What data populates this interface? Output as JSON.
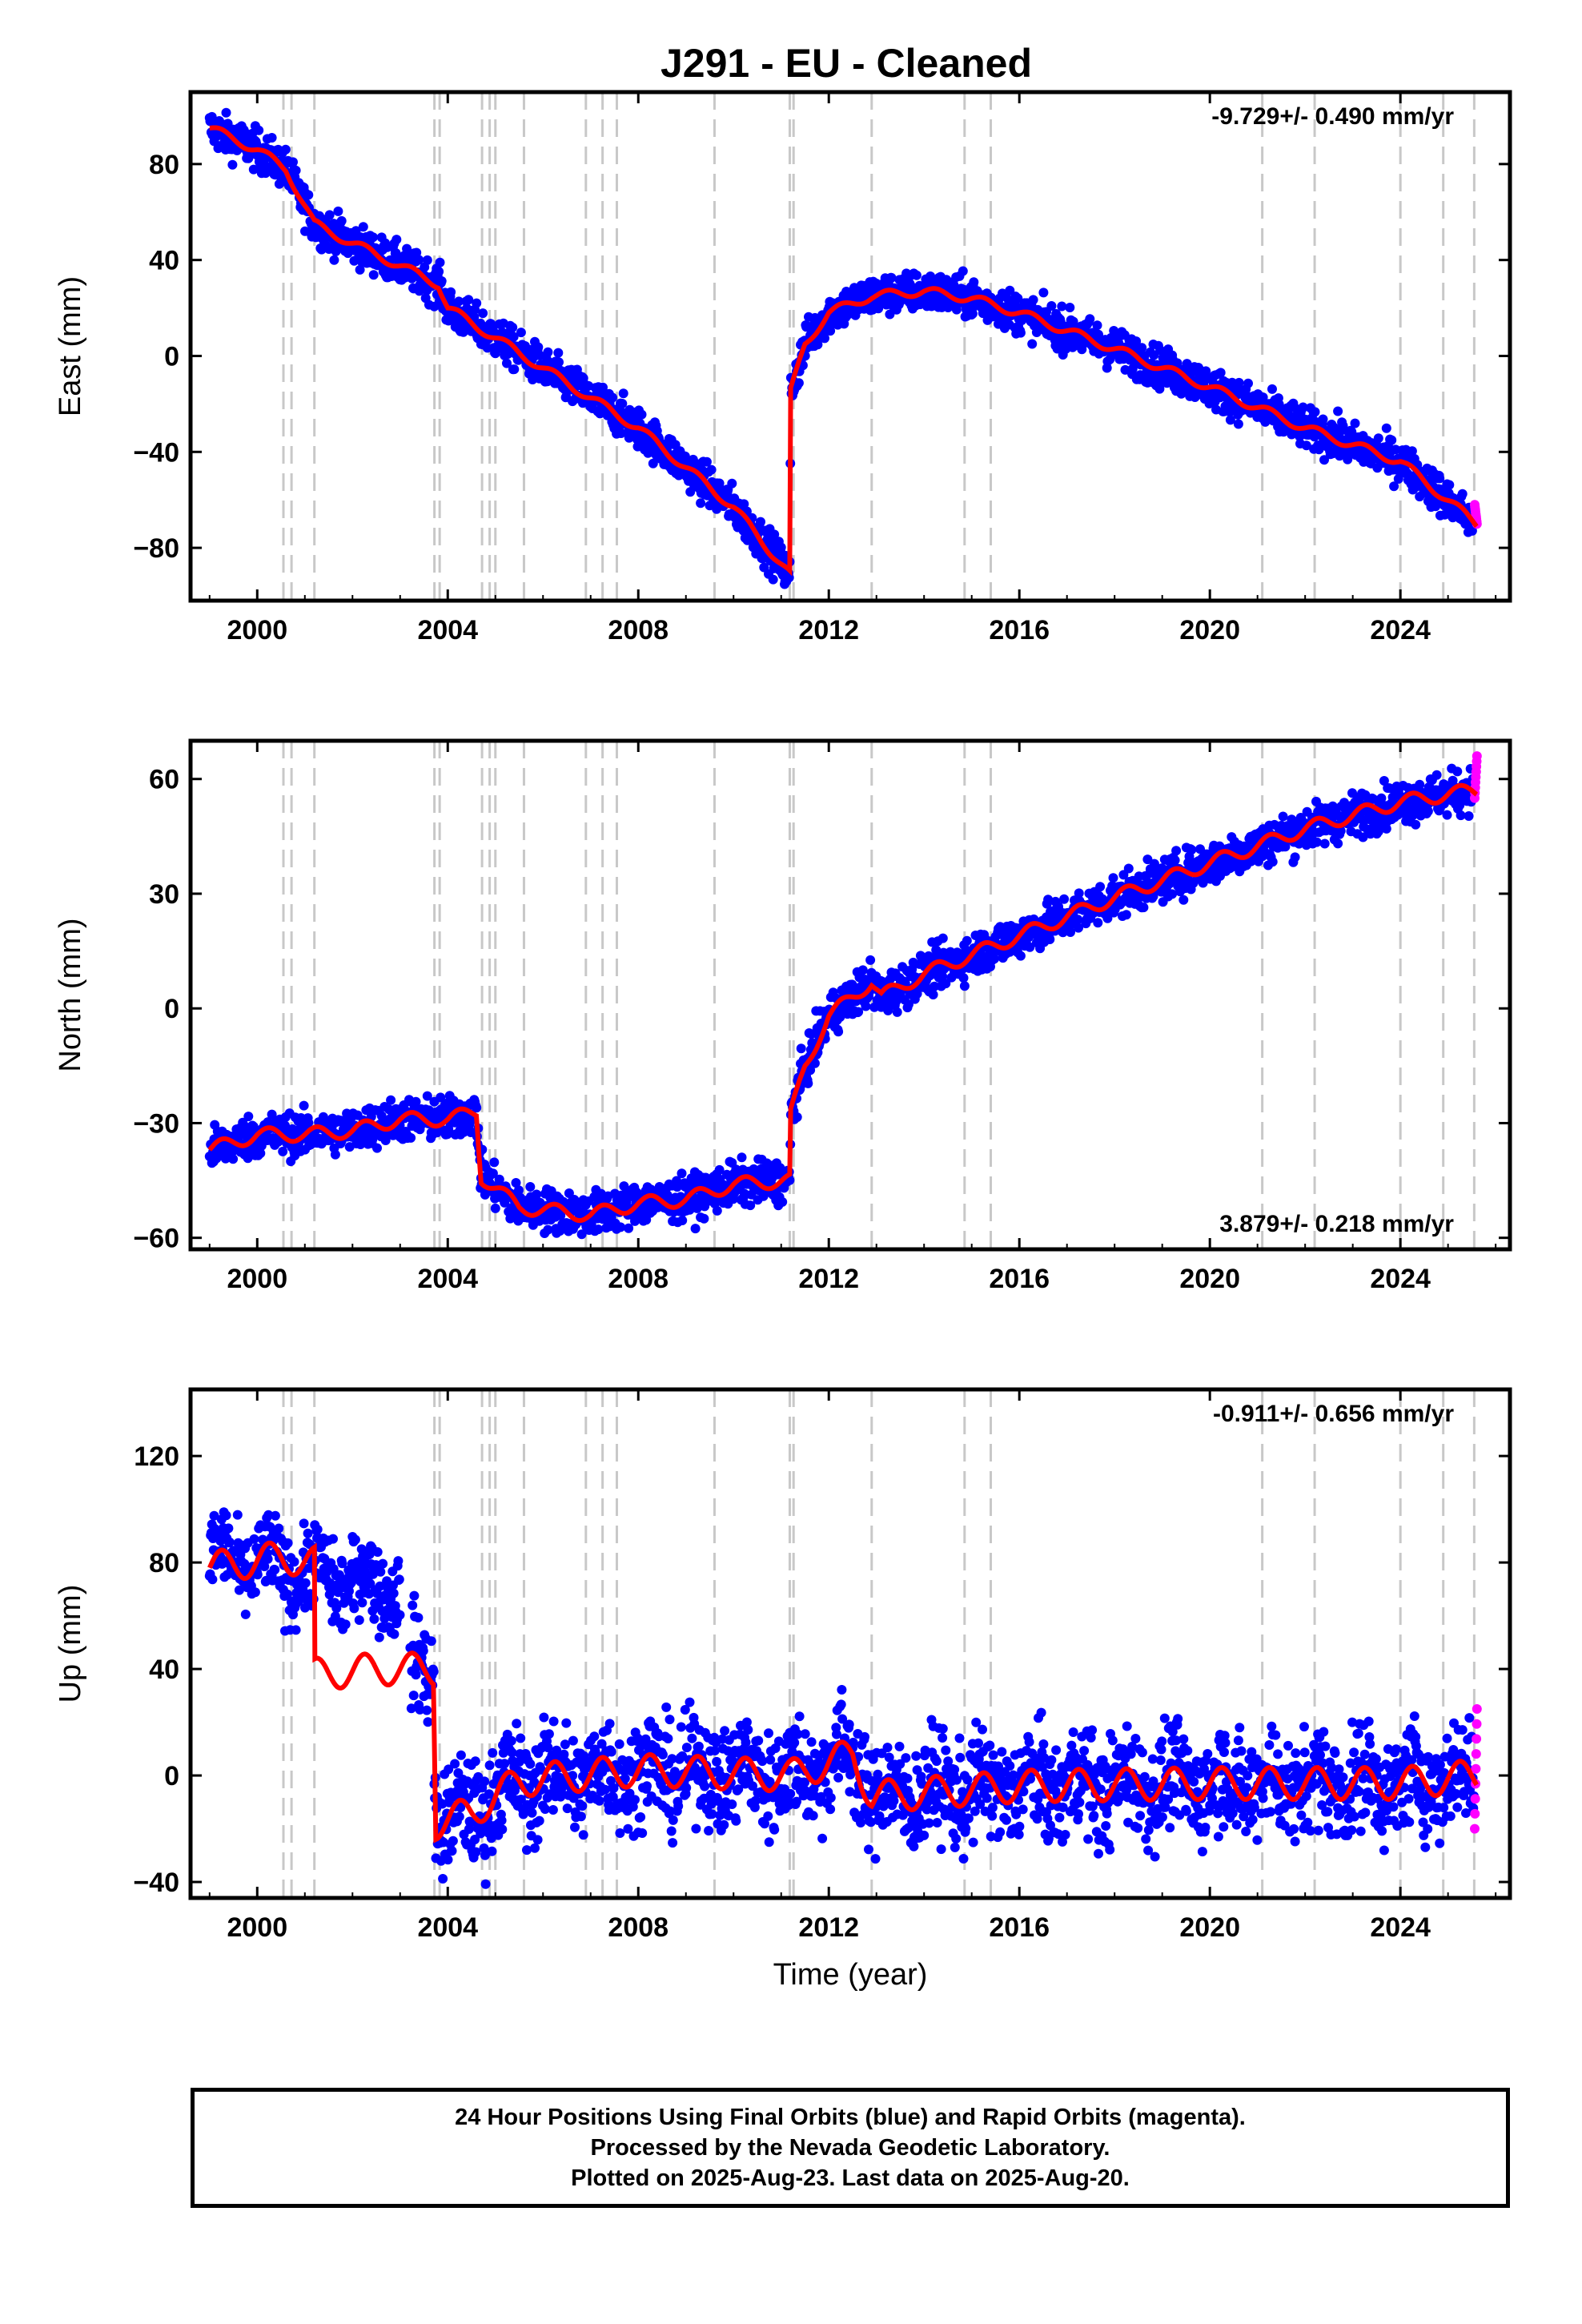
{
  "title": "J291  - EU - Cleaned",
  "colors": {
    "final_orbits": "#0000ff",
    "rapid_orbits": "#ff00ff",
    "model": "#ff0000",
    "event_lines": "#c8c8c8"
  },
  "footer": {
    "line1": "24 Hour Positions Using Final Orbits (blue) and Rapid Orbits (magenta).",
    "line2": "Processed by the Nevada Geodetic Laboratory.",
    "line3": "Plotted on 2025-Aug-23. Last data on 2025-Aug-20."
  },
  "chart_data": [
    {
      "type": "scatter",
      "ylabel": "East (mm)",
      "rate_text": "-9.729+/- 0.490 mm/yr",
      "rate_position": "top-right",
      "xlim": [
        1998.6,
        2026.3
      ],
      "ylim": [
        -102,
        110
      ],
      "xticks": [
        2000,
        2004,
        2008,
        2012,
        2016,
        2020,
        2024
      ],
      "yticks": [
        80,
        40,
        0,
        -40,
        -80
      ],
      "ytick_labels": [
        "80",
        "40",
        "0",
        "−40",
        "−80"
      ],
      "model_points": [
        [
          1999.0,
          95
        ],
        [
          2000.0,
          86
        ],
        [
          2000.6,
          78
        ],
        [
          2001.2,
          55
        ],
        [
          2002.0,
          47
        ],
        [
          2003.8,
          30
        ],
        [
          2004.0,
          20
        ],
        [
          2006.0,
          -5
        ],
        [
          2008.0,
          -30
        ],
        [
          2010.0,
          -63
        ],
        [
          2011.18,
          -91
        ],
        [
          2011.2,
          -15
        ],
        [
          2011.5,
          5
        ],
        [
          2012.0,
          18
        ],
        [
          2012.9,
          25
        ],
        [
          2014.0,
          27
        ],
        [
          2015.0,
          24
        ],
        [
          2016.0,
          18
        ],
        [
          2018.0,
          3
        ],
        [
          2020.0,
          -13
        ],
        [
          2022.0,
          -30
        ],
        [
          2024.0,
          -44
        ],
        [
          2025.6,
          -70
        ]
      ],
      "scatter_spread": 6,
      "rapid_last": [
        -62,
        -70
      ]
    },
    {
      "type": "scatter",
      "ylabel": "North (mm)",
      "rate_text": "3.879+/- 0.218 mm/yr",
      "rate_position": "bottom-right",
      "xlim": [
        1998.6,
        2026.3
      ],
      "ylim": [
        -63,
        70
      ],
      "xticks": [
        2000,
        2004,
        2008,
        2012,
        2016,
        2020,
        2024
      ],
      "yticks": [
        60,
        30,
        0,
        -30,
        -60
      ],
      "ytick_labels": [
        "60",
        "30",
        "0",
        "−30",
        "−60"
      ],
      "model_points": [
        [
          1999.0,
          -37
        ],
        [
          2000.0,
          -33
        ],
        [
          2001.0,
          -33
        ],
        [
          2002.0,
          -32
        ],
        [
          2003.0,
          -29
        ],
        [
          2004.0,
          -29
        ],
        [
          2004.6,
          -27
        ],
        [
          2004.7,
          -44
        ],
        [
          2005.5,
          -52
        ],
        [
          2007.0,
          -54
        ],
        [
          2008.0,
          -51
        ],
        [
          2009.0,
          -50
        ],
        [
          2010.0,
          -46
        ],
        [
          2011.18,
          -45
        ],
        [
          2011.2,
          -28
        ],
        [
          2011.5,
          -15
        ],
        [
          2012.0,
          -2
        ],
        [
          2012.9,
          7
        ],
        [
          2013.1,
          3
        ],
        [
          2014.0,
          9
        ],
        [
          2016.0,
          19
        ],
        [
          2018.0,
          29
        ],
        [
          2020.0,
          38
        ],
        [
          2022.0,
          47
        ],
        [
          2024.0,
          54
        ],
        [
          2025.5,
          57
        ]
      ],
      "scatter_spread": 4,
      "rapid_last": [
        55,
        66
      ]
    },
    {
      "type": "scatter",
      "ylabel": "Up (mm)",
      "xlabel": "Time (year)",
      "rate_text": "-0.911+/- 0.656 mm/yr",
      "rate_position": "top-right",
      "xlim": [
        1998.6,
        2026.3
      ],
      "ylim": [
        -46,
        145
      ],
      "xticks": [
        2000,
        2004,
        2008,
        2012,
        2016,
        2020,
        2024
      ],
      "yticks": [
        120,
        80,
        40,
        0,
        -40
      ],
      "ytick_labels": [
        "120",
        "80",
        "40",
        "0",
        "−40"
      ],
      "model_points": [
        [
          1999.0,
          78
        ],
        [
          2000.5,
          82
        ],
        [
          2001.2,
          80
        ],
        [
          2001.21,
          38
        ],
        [
          2002.5,
          40
        ],
        [
          2003.7,
          40
        ],
        [
          2003.75,
          -18
        ],
        [
          2004.5,
          -14
        ],
        [
          2005.5,
          -2
        ],
        [
          2008.0,
          2
        ],
        [
          2011.2,
          0
        ],
        [
          2012.5,
          8
        ],
        [
          2012.9,
          -8
        ],
        [
          2016.0,
          -4
        ],
        [
          2020.0,
          -3
        ],
        [
          2024.0,
          -3
        ],
        [
          2025.6,
          0
        ]
      ],
      "scatter_spread": 14,
      "rapid_last": [
        -20,
        25
      ]
    }
  ],
  "event_lines": [
    2000.55,
    2000.72,
    2001.2,
    2003.72,
    2003.83,
    2004.72,
    2004.88,
    2005.0,
    2005.6,
    2006.9,
    2007.25,
    2007.55,
    2009.6,
    2011.18,
    2011.26,
    2012.9,
    2014.85,
    2015.4,
    2021.1,
    2022.2,
    2024.0,
    2024.9,
    2025.55
  ]
}
